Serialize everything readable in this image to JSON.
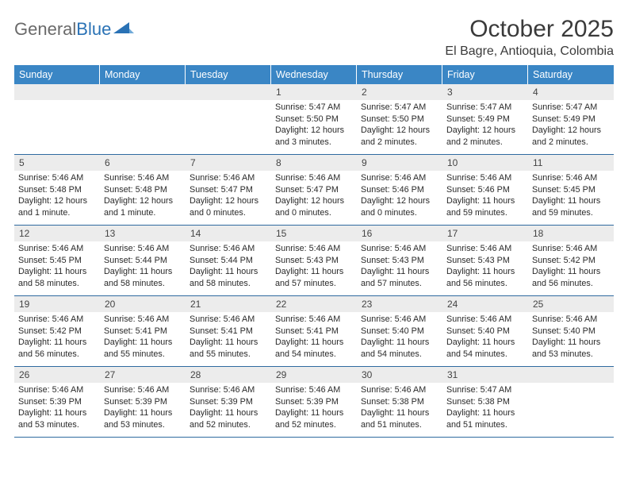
{
  "brand": {
    "part1": "General",
    "part2": "Blue"
  },
  "title": "October 2025",
  "location": "El Bagre, Antioquia, Colombia",
  "colors": {
    "header_bg": "#3a86c5",
    "header_text": "#ffffff",
    "daynum_bg": "#ececec",
    "week_border": "#2f6aa0",
    "logo_gray": "#6a6a6a",
    "logo_blue": "#2a72b5"
  },
  "dayNames": [
    "Sunday",
    "Monday",
    "Tuesday",
    "Wednesday",
    "Thursday",
    "Friday",
    "Saturday"
  ],
  "weeks": [
    [
      null,
      null,
      null,
      {
        "n": "1",
        "sr": "5:47 AM",
        "ss": "5:50 PM",
        "dl": "12 hours and 3 minutes."
      },
      {
        "n": "2",
        "sr": "5:47 AM",
        "ss": "5:50 PM",
        "dl": "12 hours and 2 minutes."
      },
      {
        "n": "3",
        "sr": "5:47 AM",
        "ss": "5:49 PM",
        "dl": "12 hours and 2 minutes."
      },
      {
        "n": "4",
        "sr": "5:47 AM",
        "ss": "5:49 PM",
        "dl": "12 hours and 2 minutes."
      }
    ],
    [
      {
        "n": "5",
        "sr": "5:46 AM",
        "ss": "5:48 PM",
        "dl": "12 hours and 1 minute."
      },
      {
        "n": "6",
        "sr": "5:46 AM",
        "ss": "5:48 PM",
        "dl": "12 hours and 1 minute."
      },
      {
        "n": "7",
        "sr": "5:46 AM",
        "ss": "5:47 PM",
        "dl": "12 hours and 0 minutes."
      },
      {
        "n": "8",
        "sr": "5:46 AM",
        "ss": "5:47 PM",
        "dl": "12 hours and 0 minutes."
      },
      {
        "n": "9",
        "sr": "5:46 AM",
        "ss": "5:46 PM",
        "dl": "12 hours and 0 minutes."
      },
      {
        "n": "10",
        "sr": "5:46 AM",
        "ss": "5:46 PM",
        "dl": "11 hours and 59 minutes."
      },
      {
        "n": "11",
        "sr": "5:46 AM",
        "ss": "5:45 PM",
        "dl": "11 hours and 59 minutes."
      }
    ],
    [
      {
        "n": "12",
        "sr": "5:46 AM",
        "ss": "5:45 PM",
        "dl": "11 hours and 58 minutes."
      },
      {
        "n": "13",
        "sr": "5:46 AM",
        "ss": "5:44 PM",
        "dl": "11 hours and 58 minutes."
      },
      {
        "n": "14",
        "sr": "5:46 AM",
        "ss": "5:44 PM",
        "dl": "11 hours and 58 minutes."
      },
      {
        "n": "15",
        "sr": "5:46 AM",
        "ss": "5:43 PM",
        "dl": "11 hours and 57 minutes."
      },
      {
        "n": "16",
        "sr": "5:46 AM",
        "ss": "5:43 PM",
        "dl": "11 hours and 57 minutes."
      },
      {
        "n": "17",
        "sr": "5:46 AM",
        "ss": "5:43 PM",
        "dl": "11 hours and 56 minutes."
      },
      {
        "n": "18",
        "sr": "5:46 AM",
        "ss": "5:42 PM",
        "dl": "11 hours and 56 minutes."
      }
    ],
    [
      {
        "n": "19",
        "sr": "5:46 AM",
        "ss": "5:42 PM",
        "dl": "11 hours and 56 minutes."
      },
      {
        "n": "20",
        "sr": "5:46 AM",
        "ss": "5:41 PM",
        "dl": "11 hours and 55 minutes."
      },
      {
        "n": "21",
        "sr": "5:46 AM",
        "ss": "5:41 PM",
        "dl": "11 hours and 55 minutes."
      },
      {
        "n": "22",
        "sr": "5:46 AM",
        "ss": "5:41 PM",
        "dl": "11 hours and 54 minutes."
      },
      {
        "n": "23",
        "sr": "5:46 AM",
        "ss": "5:40 PM",
        "dl": "11 hours and 54 minutes."
      },
      {
        "n": "24",
        "sr": "5:46 AM",
        "ss": "5:40 PM",
        "dl": "11 hours and 54 minutes."
      },
      {
        "n": "25",
        "sr": "5:46 AM",
        "ss": "5:40 PM",
        "dl": "11 hours and 53 minutes."
      }
    ],
    [
      {
        "n": "26",
        "sr": "5:46 AM",
        "ss": "5:39 PM",
        "dl": "11 hours and 53 minutes."
      },
      {
        "n": "27",
        "sr": "5:46 AM",
        "ss": "5:39 PM",
        "dl": "11 hours and 53 minutes."
      },
      {
        "n": "28",
        "sr": "5:46 AM",
        "ss": "5:39 PM",
        "dl": "11 hours and 52 minutes."
      },
      {
        "n": "29",
        "sr": "5:46 AM",
        "ss": "5:39 PM",
        "dl": "11 hours and 52 minutes."
      },
      {
        "n": "30",
        "sr": "5:46 AM",
        "ss": "5:38 PM",
        "dl": "11 hours and 51 minutes."
      },
      {
        "n": "31",
        "sr": "5:47 AM",
        "ss": "5:38 PM",
        "dl": "11 hours and 51 minutes."
      },
      null
    ]
  ],
  "labels": {
    "sunrise": "Sunrise:",
    "sunset": "Sunset:",
    "daylight": "Daylight:"
  }
}
